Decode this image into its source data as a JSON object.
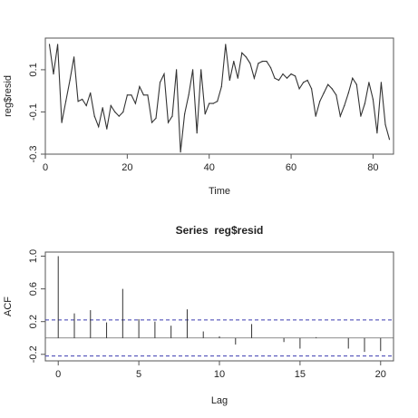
{
  "chart_data": [
    {
      "type": "line",
      "title": "",
      "xlabel": "Time",
      "ylabel": "reg$resid",
      "xlim": [
        0,
        85
      ],
      "ylim": [
        -0.3,
        0.25
      ],
      "xticks": [
        "0",
        "20",
        "40",
        "60",
        "80"
      ],
      "yticks": [
        "-0.3",
        "-0.1",
        "0.1"
      ],
      "grid": false,
      "series": [
        {
          "x": [
            1,
            2,
            3,
            4,
            5,
            6,
            7,
            8,
            9,
            10,
            11,
            12,
            13,
            14,
            15,
            16,
            17,
            18,
            19,
            20,
            21,
            22,
            23,
            24,
            25,
            26,
            27,
            28,
            29,
            30,
            31,
            32,
            33,
            34,
            35,
            36,
            37,
            38,
            39,
            40,
            41,
            42,
            43,
            44,
            45,
            46,
            47,
            48,
            49,
            50,
            51,
            52,
            53,
            54,
            55,
            56,
            57,
            58,
            59,
            60,
            61,
            62,
            63,
            64,
            65,
            66,
            67,
            68,
            69,
            70,
            71,
            72,
            73,
            74,
            75,
            76,
            77,
            78,
            79,
            80,
            81,
            82,
            83,
            84
          ],
          "values": [
            0.22,
            0.08,
            0.22,
            -0.15,
            -0.05,
            0.05,
            0.16,
            -0.05,
            -0.04,
            -0.07,
            -0.01,
            -0.12,
            -0.17,
            -0.08,
            -0.18,
            -0.07,
            -0.1,
            -0.12,
            -0.1,
            -0.02,
            -0.02,
            -0.06,
            0.02,
            -0.02,
            -0.02,
            -0.15,
            -0.13,
            0.04,
            0.08,
            -0.15,
            -0.12,
            0.1,
            -0.29,
            -0.11,
            -0.02,
            0.1,
            -0.2,
            0.1,
            -0.11,
            -0.06,
            -0.06,
            -0.05,
            0.02,
            0.22,
            0.05,
            0.14,
            0.06,
            0.18,
            0.16,
            0.13,
            0.06,
            0.13,
            0.14,
            0.14,
            0.11,
            0.06,
            0.05,
            0.08,
            0.06,
            0.08,
            0.07,
            0.01,
            0.04,
            0.05,
            0.01,
            -0.12,
            -0.05,
            -0.01,
            0.03,
            0.01,
            -0.02,
            -0.12,
            -0.07,
            -0.01,
            0.06,
            0.03,
            -0.12,
            -0.06,
            0.04,
            -0.04,
            -0.2,
            0.04,
            -0.16,
            -0.23
          ]
        }
      ]
    },
    {
      "type": "bar",
      "title": "Series  reg$resid",
      "xlabel": "Lag",
      "ylabel": "ACF",
      "xlim": [
        -0.8,
        20.8
      ],
      "ylim": [
        -0.28,
        1.05
      ],
      "xticks": [
        "0",
        "5",
        "10",
        "15",
        "20"
      ],
      "yticks": [
        "-0.2",
        "0.2",
        "0.6",
        "1.0"
      ],
      "grid": false,
      "lags": [
        0,
        1,
        2,
        3,
        4,
        5,
        6,
        7,
        8,
        9,
        10,
        11,
        12,
        13,
        14,
        15,
        16,
        17,
        18,
        19,
        20
      ],
      "values": [
        1.0,
        0.3,
        0.34,
        0.19,
        0.6,
        0.23,
        0.2,
        0.15,
        0.35,
        0.08,
        0.02,
        -0.08,
        0.17,
        0.0,
        -0.05,
        -0.13,
        0.01,
        0.0,
        -0.13,
        -0.17,
        -0.16
      ],
      "confidence_bound": 0.22,
      "confidence_color": "#3b3bb0"
    }
  ]
}
